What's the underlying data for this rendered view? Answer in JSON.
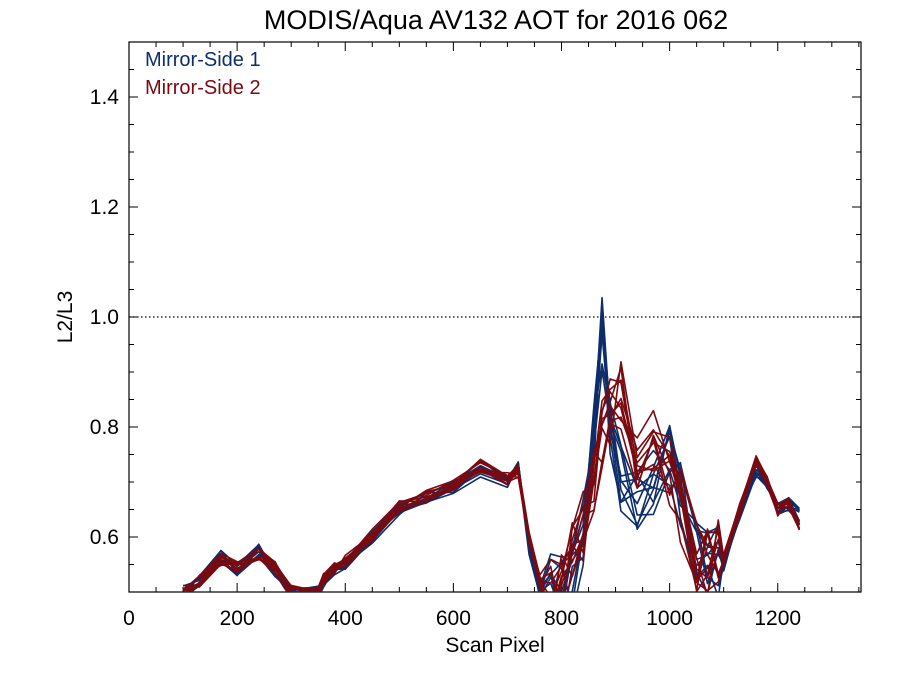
{
  "chart_data": {
    "type": "line",
    "title": "MODIS/Aqua AV132 AOT for 2016 062",
    "xlabel": "Scan Pixel",
    "ylabel": "L2/L3",
    "xlim": [
      0,
      1354
    ],
    "ylim": [
      0.5,
      1.5
    ],
    "x_ticks": [
      0,
      200,
      400,
      600,
      800,
      1000,
      1200
    ],
    "y_ticks": [
      0.6,
      0.8,
      1.0,
      1.2,
      1.4
    ],
    "reference_line": 1.0,
    "grid": false,
    "legend_position": "top-left",
    "colors": {
      "mirror_side_1": "#0d2d6b",
      "mirror_side_2": "#7a0a10"
    },
    "series": [
      {
        "name": "Mirror-Side 1",
        "color": "#0d2d6b",
        "x": [
          100,
          130,
          170,
          200,
          240,
          270,
          300,
          350,
          360,
          380,
          400,
          450,
          500,
          550,
          600,
          650,
          700,
          720,
          740,
          760,
          780,
          800,
          820,
          840,
          860,
          875,
          890,
          910,
          940,
          970,
          1000,
          1020,
          1050,
          1070,
          1090,
          1100,
          1130,
          1160,
          1180,
          1200,
          1220,
          1240
        ],
        "values": [
          0.5,
          0.52,
          0.565,
          0.54,
          0.575,
          0.54,
          0.5,
          0.5,
          0.52,
          0.54,
          0.55,
          0.6,
          0.65,
          0.67,
          0.69,
          0.72,
          0.7,
          0.73,
          0.58,
          0.5,
          0.5,
          0.5,
          0.53,
          0.6,
          0.78,
          0.97,
          0.78,
          0.7,
          0.66,
          0.7,
          0.74,
          0.68,
          0.58,
          0.55,
          0.56,
          0.55,
          0.64,
          0.72,
          0.7,
          0.65,
          0.66,
          0.64
        ]
      },
      {
        "name": "Mirror-Side 2",
        "color": "#7a0a10",
        "x": [
          100,
          130,
          170,
          200,
          240,
          270,
          300,
          350,
          360,
          380,
          400,
          450,
          500,
          550,
          600,
          650,
          700,
          720,
          740,
          760,
          780,
          800,
          820,
          840,
          860,
          875,
          890,
          910,
          940,
          970,
          1000,
          1020,
          1050,
          1070,
          1090,
          1100,
          1130,
          1160,
          1180,
          1200,
          1220,
          1240
        ],
        "values": [
          0.5,
          0.52,
          0.56,
          0.545,
          0.57,
          0.545,
          0.5,
          0.5,
          0.525,
          0.545,
          0.555,
          0.605,
          0.655,
          0.675,
          0.695,
          0.73,
          0.705,
          0.72,
          0.6,
          0.52,
          0.5,
          0.52,
          0.56,
          0.62,
          0.7,
          0.78,
          0.82,
          0.86,
          0.72,
          0.76,
          0.72,
          0.66,
          0.57,
          0.56,
          0.58,
          0.56,
          0.65,
          0.74,
          0.7,
          0.65,
          0.66,
          0.62
        ]
      }
    ]
  }
}
